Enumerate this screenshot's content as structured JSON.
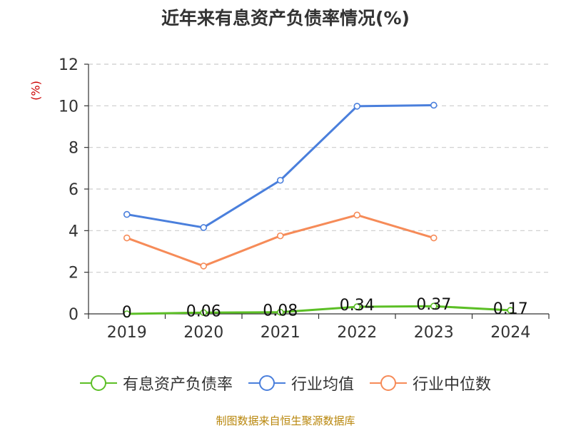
{
  "colors": {
    "debt_ratio": "#5cbf26",
    "industry_mean": "#4a7fdc",
    "industry_median": "#f68b58",
    "grid": "#cccccc",
    "axis": "#333333",
    "ylabel": "#cc0000",
    "source": "#b8860b"
  },
  "legend_icon": "circle-on-line",
  "source_text": "制图数据来自恒生聚源数据库",
  "chart_data": {
    "type": "line",
    "title": "近年来有息资产负债率情况(%)",
    "ylabel": "(%)",
    "xlabel": "",
    "categories": [
      "2019",
      "2020",
      "2021",
      "2022",
      "2023",
      "2024"
    ],
    "ylim": [
      0,
      12
    ],
    "yticks": [
      0,
      2,
      4,
      6,
      8,
      10,
      12
    ],
    "grid": true,
    "legend_position": "bottom",
    "series": [
      {
        "name": "有息资产负债率",
        "values": [
          0,
          0.06,
          0.08,
          0.34,
          0.37,
          0.17
        ],
        "labels": [
          "0",
          "0.06",
          "0.08",
          "0.34",
          "0.37",
          "0.17"
        ],
        "color_key": "debt_ratio"
      },
      {
        "name": "行业均值",
        "values": [
          4.78,
          4.15,
          6.42,
          9.98,
          10.03,
          null
        ],
        "color_key": "industry_mean"
      },
      {
        "name": "行业中位数",
        "values": [
          3.65,
          2.3,
          3.75,
          4.75,
          3.65,
          null
        ],
        "color_key": "industry_median"
      }
    ]
  }
}
